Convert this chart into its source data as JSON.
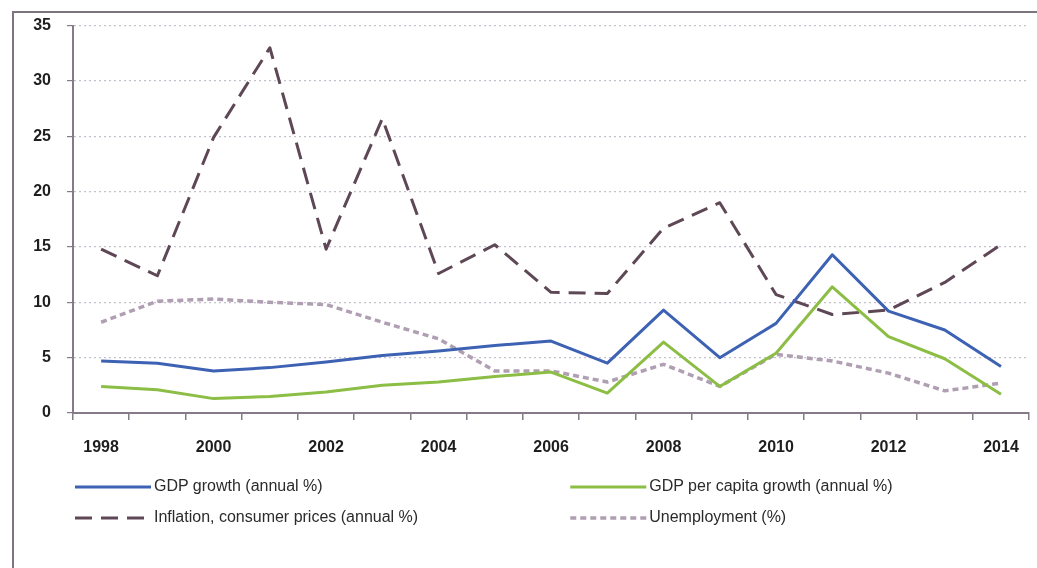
{
  "chart_data": {
    "type": "line",
    "categories": [
      "1998",
      null,
      "2000",
      null,
      "2002",
      null,
      "2004",
      null,
      "2006",
      null,
      "2008",
      null,
      "2010",
      null,
      "2012",
      null,
      "2014"
    ],
    "series": [
      {
        "name": "GDP growth (annual %)",
        "color": "#3d62b3",
        "line_style": "solid",
        "values": [
          4.7,
          4.5,
          3.8,
          4.1,
          4.6,
          5.2,
          5.6,
          6.1,
          6.5,
          4.5,
          9.3,
          5.0,
          8.1,
          14.3,
          9.2,
          7.5,
          4.2
        ]
      },
      {
        "name": "GDP per capita growth (annual %)",
        "color": "#8cbd45",
        "line_style": "solid",
        "values": [
          2.4,
          2.1,
          1.3,
          1.5,
          1.9,
          2.5,
          2.8,
          3.3,
          3.7,
          1.8,
          6.4,
          2.4,
          5.4,
          11.4,
          6.9,
          4.9,
          1.7
        ]
      },
      {
        "name": "Inflation, consumer prices (annual %)",
        "color": "#5e4856",
        "line_style": "dashed",
        "values": [
          14.8,
          12.4,
          24.9,
          33.0,
          14.8,
          26.6,
          12.6,
          15.2,
          10.9,
          10.8,
          16.7,
          19.0,
          10.7,
          8.9,
          9.3,
          11.8,
          15.2
        ]
      },
      {
        "name": "Unemployment (%)",
        "color": "#b09fb3",
        "line_style": "dotted",
        "values": [
          8.2,
          10.1,
          10.3,
          10.0,
          9.8,
          8.2,
          6.7,
          3.8,
          3.8,
          2.8,
          4.4,
          2.4,
          5.3,
          4.7,
          3.6,
          2.0,
          2.7
        ]
      }
    ],
    "ylim": [
      0,
      35
    ],
    "yticks": [
      0,
      5,
      10,
      15,
      20,
      25,
      30,
      35
    ],
    "grid": "y",
    "legend": "bottom"
  }
}
